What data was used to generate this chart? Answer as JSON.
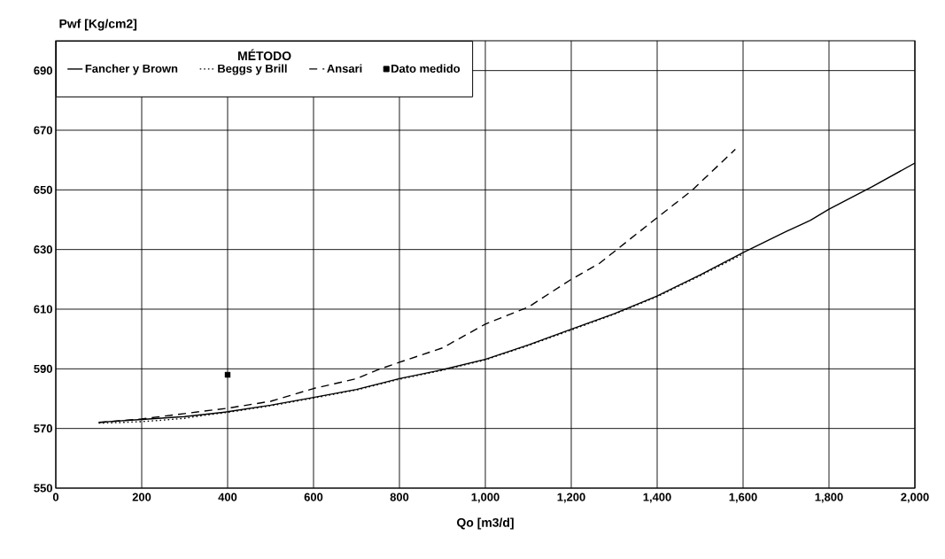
{
  "chart_data": {
    "type": "line",
    "xlabel": "Qo [m3/d]",
    "ylabel": "Pwf [Kg/cm2]",
    "legend_title": "MÉTODO",
    "xlim": [
      0,
      2000
    ],
    "ylim": [
      550,
      700
    ],
    "xticks": [
      0,
      200,
      400,
      600,
      800,
      {
        "value": 1000,
        "label": "1,000"
      },
      {
        "value": 1200,
        "label": "1,200"
      },
      {
        "value": 1400,
        "label": "1,400"
      },
      {
        "value": 1600,
        "label": "1,600"
      },
      {
        "value": 1800,
        "label": "1,800"
      },
      {
        "value": 2000,
        "label": "2,000"
      }
    ],
    "yticks": [
      550,
      570,
      590,
      610,
      630,
      650,
      670,
      690
    ],
    "grid": true,
    "legend": "top left",
    "series": [
      {
        "name": "Fancher y Brown",
        "color": "#000000",
        "line_style": "solid",
        "marker": "none",
        "x": [
          100,
          200,
          300,
          400,
          500,
          600,
          700,
          800,
          900,
          1000,
          1100,
          1200,
          1300,
          1400,
          1500,
          1600,
          1700,
          1757,
          1800,
          1900,
          2000
        ],
        "values": [
          572.1,
          573,
          574,
          575.6,
          577.8,
          580.4,
          583.1,
          586.7,
          589.7,
          593.2,
          598,
          603.3,
          608.5,
          614.4,
          621.5,
          629,
          636,
          639.8,
          643.5,
          651,
          659
        ]
      },
      {
        "name": "Beggs y Brill",
        "color": "#000000",
        "line_style": "dotted",
        "marker": "none",
        "x": [
          100,
          150,
          200,
          250,
          300,
          350,
          400,
          500,
          600,
          700,
          800,
          900,
          1000,
          1100,
          1200,
          1300,
          1400,
          1500,
          1600
        ],
        "values": [
          571.8,
          572,
          572.3,
          572.8,
          573.4,
          574.5,
          575.4,
          577.6,
          580.2,
          582.9,
          586.5,
          589.5,
          593,
          597.8,
          603,
          608.3,
          614.2,
          621.2,
          628.5
        ]
      },
      {
        "name": "Ansari",
        "color": "#000000",
        "line_style": "dashed",
        "marker": "none",
        "x": [
          100,
          200,
          300,
          400,
          500,
          600,
          700,
          750,
          800,
          900,
          1000,
          1100,
          1200,
          1265,
          1400,
          1480,
          1582
        ],
        "values": [
          572,
          573.2,
          575,
          576.8,
          579.1,
          583.4,
          586.7,
          589.7,
          592.2,
          597,
          605,
          610.7,
          620,
          625.3,
          640.7,
          649.7,
          663.6
        ]
      },
      {
        "name": "Dato medido",
        "type": "scatter",
        "color": "#000000",
        "marker": "square",
        "x": [
          400
        ],
        "values": [
          588
        ]
      }
    ]
  }
}
